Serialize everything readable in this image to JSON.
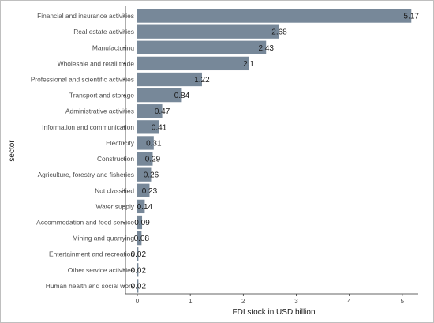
{
  "chart_data": {
    "type": "bar",
    "orientation": "horizontal",
    "categories": [
      "Financial and insurance activities",
      "Real estate activities",
      "Manufacturing",
      "Wholesale and retail trade",
      "Professional and scientific activities",
      "Transport and storage",
      "Administrative  activities",
      "Information and communication",
      "Electricity",
      "Construction",
      "Agriculture, forestry and fisheries",
      "Not classified",
      "Water supply",
      "Accommodation and food service",
      "Mining and quarrying",
      "Entertainment and recreation",
      "Other service activities",
      "Human health and social work"
    ],
    "values": [
      5.17,
      2.68,
      2.43,
      2.1,
      1.22,
      0.84,
      0.47,
      0.41,
      0.31,
      0.29,
      0.26,
      0.23,
      0.14,
      0.09,
      0.08,
      0.02,
      0.02,
      0.02
    ],
    "data_labels": [
      "5.17",
      "2.68",
      "2.43",
      "2.1",
      "1.22",
      "0.84",
      "0.47",
      "0.41",
      "0.31",
      "0.29",
      "0.26",
      "0.23",
      "0.14",
      "0.09",
      "0.08",
      "0.02",
      "0.02",
      "0.02"
    ],
    "xlabel": "FDI stock in USD billion",
    "ylabel": "sector",
    "xlim": [
      0,
      5.3
    ],
    "xticks": [
      0,
      1,
      2,
      3,
      4,
      5
    ],
    "grid": false,
    "legend": "none",
    "bar_color": "#778899"
  }
}
